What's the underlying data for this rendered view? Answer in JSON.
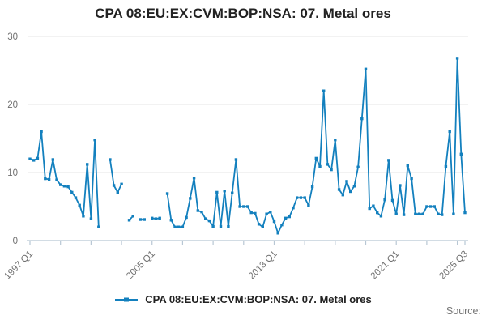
{
  "title": "CPA 08:EU:EX:CVM:BOP:NSA: 07. Metal ores",
  "legend": {
    "label": "CPA 08:EU:EX:CVM:BOP:NSA: 07. Metal ores",
    "marker_icon": "line-with-square-marker-icon"
  },
  "source_label": "Source:",
  "colors": {
    "series": "#1380be",
    "grid": "#e6e6e6",
    "axis": "#b8c7d4",
    "text_muted": "#707070",
    "title_text": "#222222"
  },
  "chart_data": {
    "type": "line",
    "title": "CPA 08:EU:EX:CVM:BOP:NSA: 07. Metal ores",
    "x_unit": "quarter",
    "x_start": "1997 Q1",
    "x_end": "2025 Q3",
    "frequency": "quarterly",
    "grid": "horizontal",
    "legend_position": "bottom",
    "ylim": [
      0,
      30
    ],
    "y_ticks": [
      0,
      10,
      20,
      30
    ],
    "x_tick_labels": [
      "1997 Q1",
      "2005 Q1",
      "2013 Q1",
      "2021 Q1",
      "2025 Q3"
    ],
    "x_tick_positions": [
      0,
      32,
      64,
      96,
      114
    ],
    "minor_tick_every_quarters": 8,
    "series": [
      {
        "name": "CPA 08:EU:EX:CVM:BOP:NSA: 07. Metal ores",
        "color": "#1380be",
        "marker": "square",
        "values": [
          12.0,
          11.8,
          12.1,
          16.0,
          9.1,
          9.0,
          11.9,
          8.9,
          8.2,
          8.0,
          7.9,
          7.1,
          6.3,
          5.2,
          3.6,
          11.2,
          3.2,
          14.8,
          2.0,
          null,
          null,
          11.9,
          8.1,
          7.1,
          8.3,
          null,
          3.0,
          3.6,
          null,
          3.1,
          3.1,
          null,
          3.3,
          3.2,
          3.3,
          null,
          6.9,
          3.0,
          2.0,
          2.0,
          2.0,
          3.4,
          6.2,
          9.2,
          4.4,
          4.2,
          3.2,
          2.9,
          2.1,
          7.1,
          2.1,
          7.3,
          2.1,
          7.0,
          11.9,
          5.0,
          5.0,
          5.0,
          4.1,
          4.0,
          2.4,
          2.0,
          3.9,
          4.2,
          2.8,
          1.1,
          2.3,
          3.3,
          3.5,
          4.8,
          6.3,
          6.3,
          6.3,
          5.2,
          7.9,
          12.1,
          10.9,
          22.0,
          11.2,
          10.4,
          14.8,
          7.5,
          6.7,
          8.7,
          7.2,
          8.0,
          10.8,
          17.9,
          25.2,
          4.7,
          5.1,
          4.1,
          3.6,
          6.0,
          11.8,
          5.9,
          3.9,
          8.1,
          3.8,
          11.0,
          9.1,
          3.9,
          3.9,
          3.9,
          5.0,
          5.0,
          5.0,
          3.9,
          3.8,
          10.9,
          16.0,
          3.9,
          26.8,
          12.7,
          4.1
        ]
      }
    ]
  }
}
